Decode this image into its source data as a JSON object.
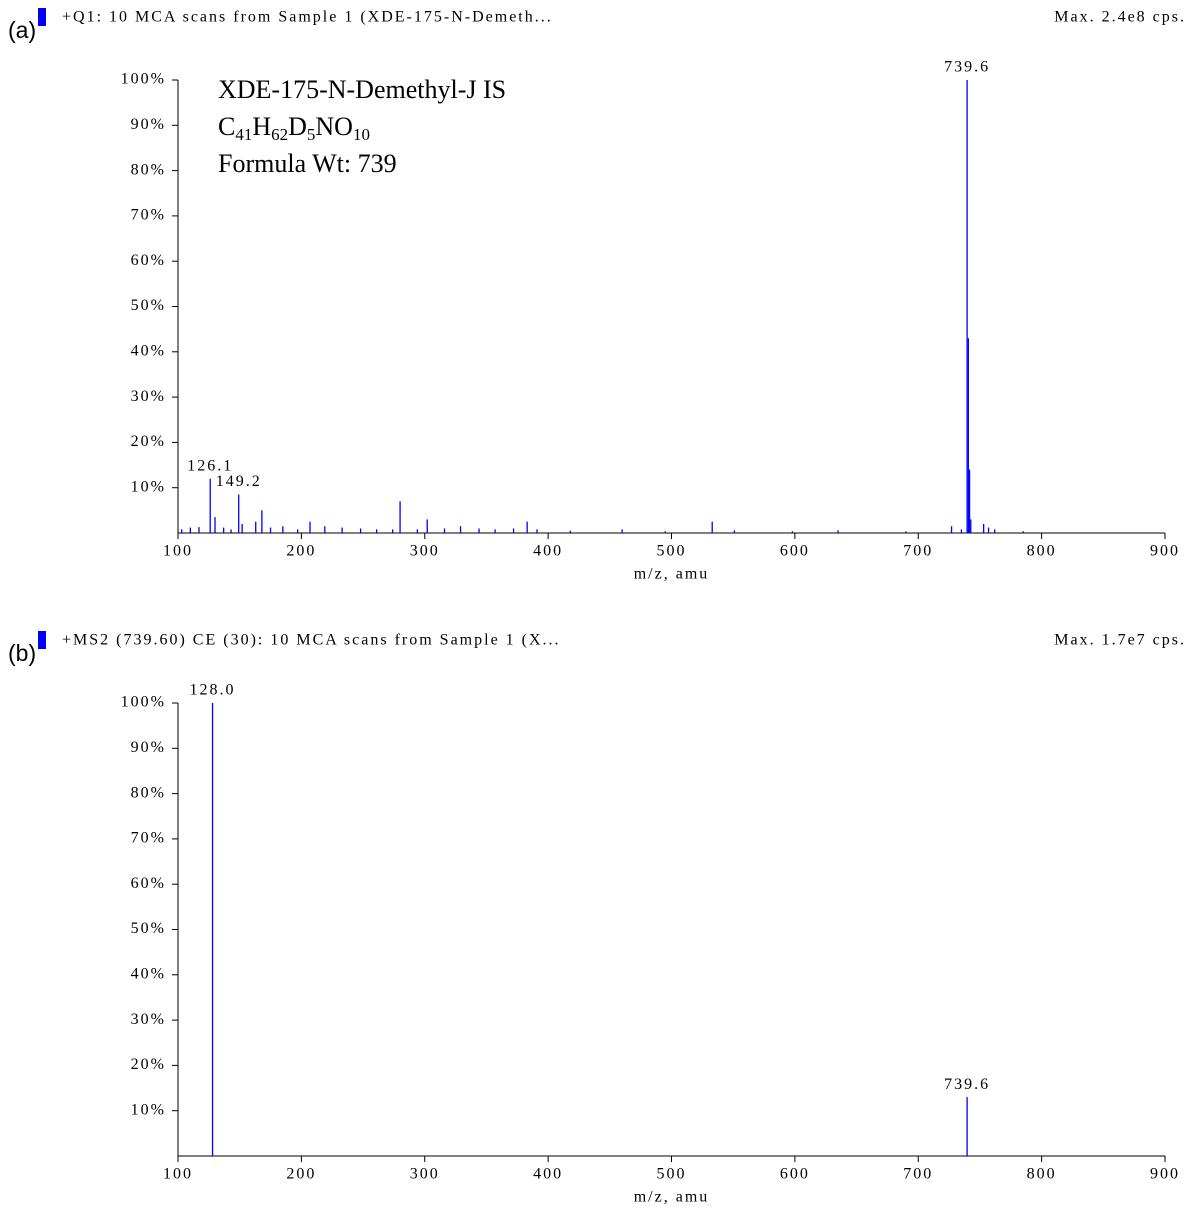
{
  "chart_data": [
    {
      "type": "spectrum",
      "panel": "(a)",
      "title": "+Q1: 10 MCA scans from Sample 1 (XDE-175-N-Demeth...",
      "subtitle": "Max. 2.4e8 cps.",
      "x_label": "m/z, amu",
      "xlim": [
        100,
        900
      ],
      "xticks": [
        100,
        200,
        300,
        400,
        500,
        600,
        700,
        800,
        900
      ],
      "ylim": [
        0,
        100
      ],
      "yticks": [
        {
          "value": 10,
          "label": "10%"
        },
        {
          "value": 20,
          "label": "20%"
        },
        {
          "value": 30,
          "label": "30%"
        },
        {
          "value": 40,
          "label": "40%"
        },
        {
          "value": 50,
          "label": "50%"
        },
        {
          "value": 60,
          "label": "60%"
        },
        {
          "value": 70,
          "label": "70%"
        },
        {
          "value": 80,
          "label": "80%"
        },
        {
          "value": 90,
          "label": "90%"
        },
        {
          "value": 100,
          "label": "100%"
        }
      ],
      "annotation": {
        "compound": "XDE-175-N-Demethyl-J IS",
        "formula": [
          "C",
          "41",
          "H",
          "62",
          "D",
          "5",
          "NO",
          "10"
        ],
        "formula_wt": "Formula Wt: 739"
      },
      "series": [
        {
          "color": "#0000ff",
          "x": [
            103,
            110,
            117,
            126.1,
            130,
            137,
            143,
            149.2,
            152,
            163,
            168,
            175,
            185,
            197,
            207,
            219,
            233,
            248,
            261,
            274,
            280,
            294,
            302,
            316,
            329,
            344,
            357,
            372,
            383,
            391,
            418,
            460,
            495,
            533,
            551,
            598,
            635,
            690,
            727,
            735,
            739.6,
            740.6,
            741.6,
            742.6,
            753,
            757,
            762,
            785
          ],
          "values": [
            0.8,
            1.2,
            1.3,
            12,
            3.5,
            1.2,
            0.8,
            8.5,
            2,
            2.5,
            5,
            1.2,
            1.5,
            0.8,
            2.5,
            1.5,
            1.2,
            1,
            0.8,
            0.8,
            7,
            0.8,
            3,
            1,
            1.5,
            1,
            0.8,
            1,
            2.5,
            0.8,
            0.5,
            0.8,
            0.4,
            2.5,
            0.6,
            0.4,
            0.6,
            0.4,
            1.5,
            0.8,
            100,
            43,
            14,
            3,
            2,
            1.2,
            0.8,
            0.4
          ],
          "peak_labels": [
            null,
            null,
            null,
            "126.1",
            null,
            null,
            null,
            "149.2",
            null,
            null,
            null,
            null,
            null,
            null,
            null,
            null,
            null,
            null,
            null,
            null,
            null,
            null,
            null,
            null,
            null,
            null,
            null,
            null,
            null,
            null,
            null,
            null,
            null,
            null,
            null,
            null,
            null,
            null,
            null,
            null,
            "739.6",
            null,
            null,
            null,
            null,
            null,
            null,
            null
          ]
        }
      ]
    },
    {
      "type": "spectrum",
      "panel": "(b)",
      "title": "+MS2 (739.60) CE (30): 10 MCA scans from Sample 1 (X...",
      "subtitle": "Max. 1.7e7 cps.",
      "x_label": "m/z, amu",
      "xlim": [
        100,
        900
      ],
      "xticks": [
        100,
        200,
        300,
        400,
        500,
        600,
        700,
        800,
        900
      ],
      "ylim": [
        0,
        100
      ],
      "yticks": [
        {
          "value": 10,
          "label": "10%"
        },
        {
          "value": 20,
          "label": "20%"
        },
        {
          "value": 30,
          "label": "30%"
        },
        {
          "value": 40,
          "label": "40%"
        },
        {
          "value": 50,
          "label": "50%"
        },
        {
          "value": 60,
          "label": "60%"
        },
        {
          "value": 70,
          "label": "70%"
        },
        {
          "value": 80,
          "label": "80%"
        },
        {
          "value": 90,
          "label": "90%"
        },
        {
          "value": 100,
          "label": "100%"
        }
      ],
      "series": [
        {
          "color": "#0000ff",
          "x": [
            128.0,
            739.6
          ],
          "values": [
            100,
            13
          ],
          "peak_labels": [
            "128.0",
            "739.6"
          ]
        }
      ]
    }
  ]
}
